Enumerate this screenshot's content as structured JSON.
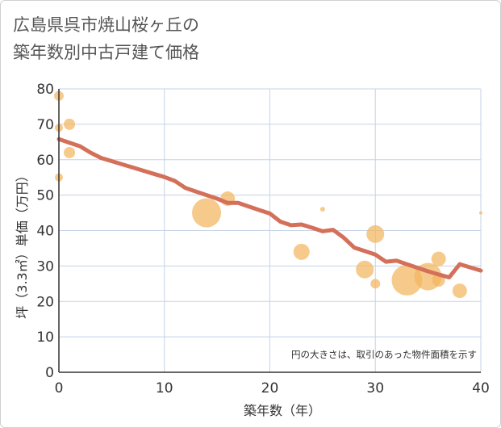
{
  "title_line1": "広島県呉市焼山桜ヶ丘の",
  "title_line2": "築年数別中古戸建て価格",
  "chart_data": {
    "type": "scatter",
    "title": "広島県呉市焼山桜ヶ丘の築年数別中古戸建て価格",
    "xlabel": "築年数（年）",
    "ylabel": "坪（3.3㎡）単価（万円）",
    "note": "円の大きさは、取引のあった物件面積を示す",
    "xlim": [
      0,
      40
    ],
    "ylim": [
      0,
      80
    ],
    "x_ticks": [
      0,
      10,
      20,
      30,
      40
    ],
    "y_ticks": [
      0,
      10,
      20,
      30,
      40,
      50,
      60,
      70,
      80
    ],
    "colors": {
      "bubble": "#f2b65e",
      "line": "#d4705a",
      "grid": "#c5d3e6"
    },
    "bubbles": [
      {
        "x": 0,
        "y": 78,
        "size": 6
      },
      {
        "x": 0,
        "y": 69,
        "size": 5
      },
      {
        "x": 0,
        "y": 55,
        "size": 5
      },
      {
        "x": 1,
        "y": 70,
        "size": 7
      },
      {
        "x": 1,
        "y": 62,
        "size": 7
      },
      {
        "x": 14,
        "y": 45,
        "size": 18
      },
      {
        "x": 16,
        "y": 49,
        "size": 9
      },
      {
        "x": 23,
        "y": 34,
        "size": 10
      },
      {
        "x": 25,
        "y": 46,
        "size": 3
      },
      {
        "x": 29,
        "y": 29,
        "size": 11
      },
      {
        "x": 30,
        "y": 39,
        "size": 11
      },
      {
        "x": 30,
        "y": 25,
        "size": 6
      },
      {
        "x": 33,
        "y": 26,
        "size": 19
      },
      {
        "x": 35,
        "y": 27,
        "size": 17
      },
      {
        "x": 36,
        "y": 32,
        "size": 9
      },
      {
        "x": 36,
        "y": 26,
        "size": 8
      },
      {
        "x": 38,
        "y": 23,
        "size": 9
      },
      {
        "x": 40,
        "y": 45,
        "size": 2
      }
    ],
    "trend_line": [
      {
        "x": 0,
        "y": 65.8
      },
      {
        "x": 1,
        "y": 64.8
      },
      {
        "x": 2,
        "y": 63.8
      },
      {
        "x": 3,
        "y": 62
      },
      {
        "x": 4,
        "y": 60.5
      },
      {
        "x": 5,
        "y": 59.6
      },
      {
        "x": 6,
        "y": 58.7
      },
      {
        "x": 7,
        "y": 57.8
      },
      {
        "x": 8,
        "y": 56.9
      },
      {
        "x": 9,
        "y": 56
      },
      {
        "x": 10,
        "y": 55.1
      },
      {
        "x": 11,
        "y": 54
      },
      {
        "x": 12,
        "y": 52
      },
      {
        "x": 13,
        "y": 51
      },
      {
        "x": 14,
        "y": 50
      },
      {
        "x": 15,
        "y": 49
      },
      {
        "x": 16,
        "y": 47.8
      },
      {
        "x": 17,
        "y": 47.8
      },
      {
        "x": 18,
        "y": 46.8
      },
      {
        "x": 19,
        "y": 45.8
      },
      {
        "x": 20,
        "y": 44.8
      },
      {
        "x": 21,
        "y": 42.5
      },
      {
        "x": 22,
        "y": 41.5
      },
      {
        "x": 23,
        "y": 41.7
      },
      {
        "x": 24,
        "y": 40.8
      },
      {
        "x": 25,
        "y": 39.8
      },
      {
        "x": 26,
        "y": 40.2
      },
      {
        "x": 27,
        "y": 38
      },
      {
        "x": 28,
        "y": 35.2
      },
      {
        "x": 29,
        "y": 34.2
      },
      {
        "x": 30,
        "y": 33.2
      },
      {
        "x": 31,
        "y": 31.2
      },
      {
        "x": 32,
        "y": 31.5
      },
      {
        "x": 33,
        "y": 30.5
      },
      {
        "x": 34,
        "y": 29.5
      },
      {
        "x": 35,
        "y": 28.5
      },
      {
        "x": 36,
        "y": 27.6
      },
      {
        "x": 37,
        "y": 26.8
      },
      {
        "x": 38,
        "y": 30.5
      },
      {
        "x": 39,
        "y": 29.6
      },
      {
        "x": 40,
        "y": 28.7
      }
    ]
  }
}
